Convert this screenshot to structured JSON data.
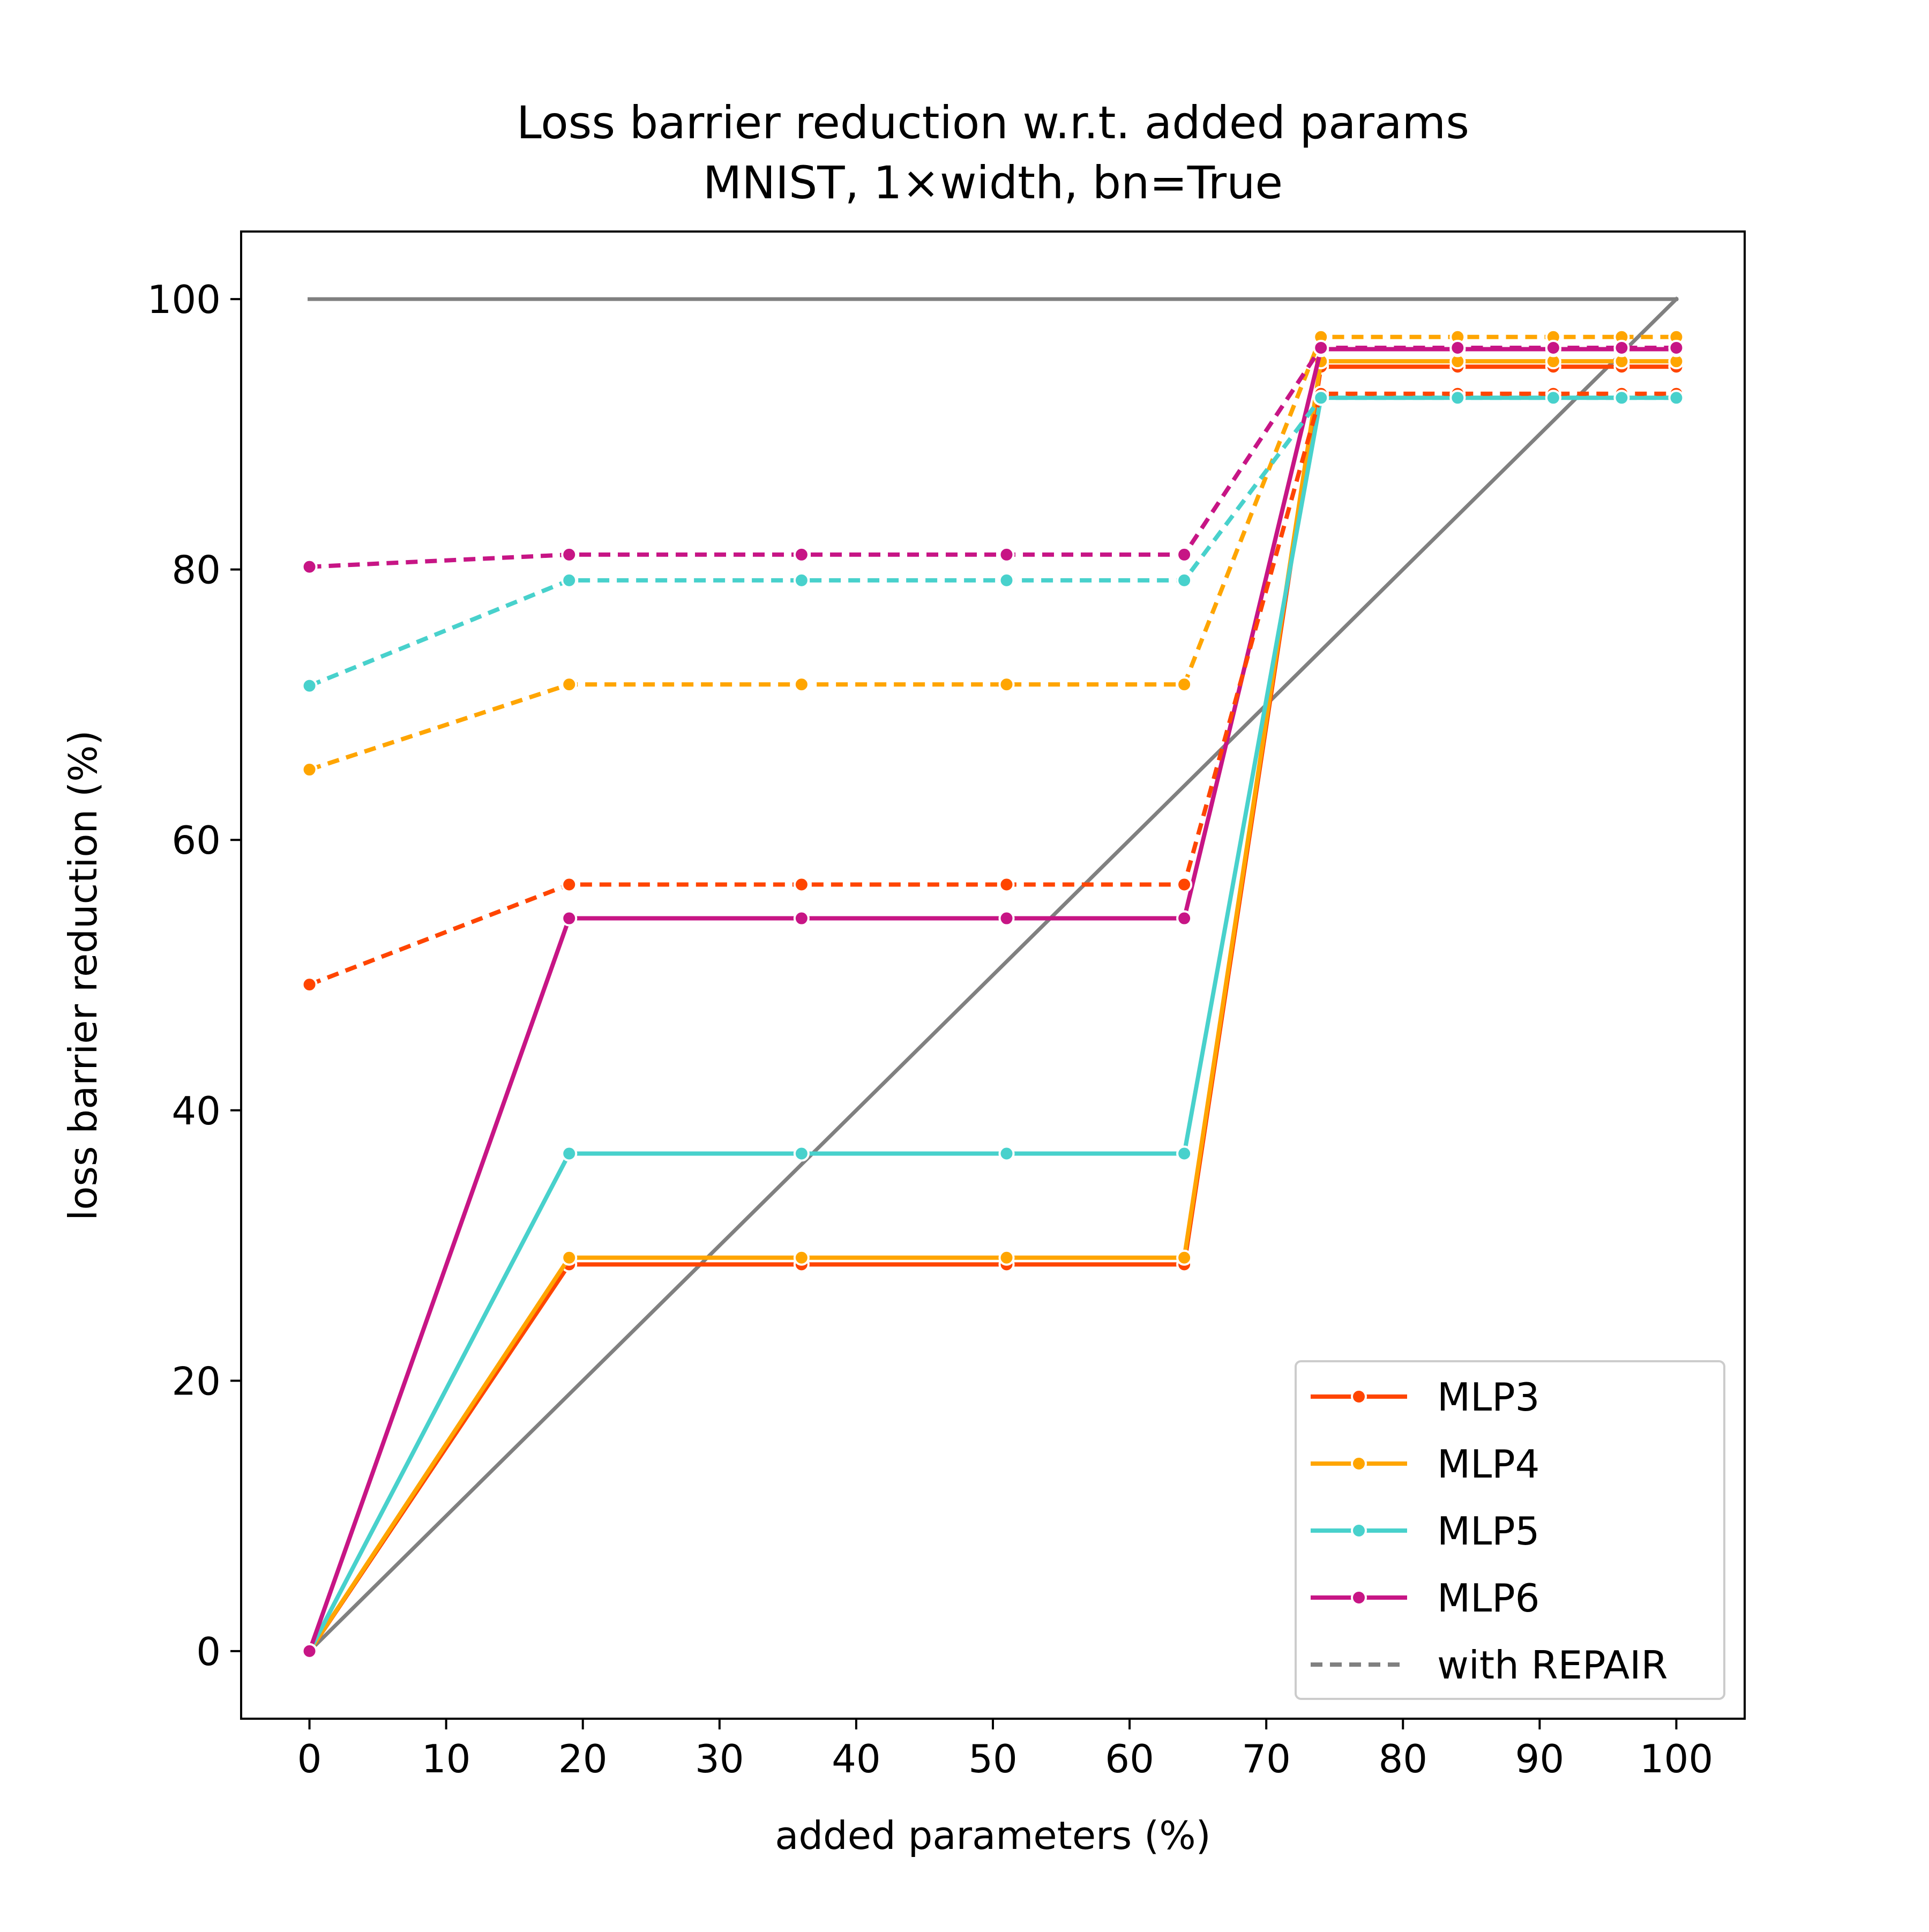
{
  "chart_data": {
    "type": "line",
    "title": [
      "Loss barrier reduction w.r.t. added params",
      "MNIST, 1×width, bn=True"
    ],
    "xlabel": "added parameters (%)",
    "ylabel": "loss barrier reduction (%)",
    "xlim": [
      -5,
      105
    ],
    "ylim": [
      -5,
      105
    ],
    "xticks": [
      0,
      10,
      20,
      30,
      40,
      50,
      60,
      70,
      80,
      90,
      100
    ],
    "yticks": [
      0,
      20,
      40,
      60,
      80,
      100
    ],
    "grid": false,
    "legend_position": "lower right",
    "x": [
      0,
      19,
      36,
      51,
      64,
      74,
      84,
      91,
      96,
      100
    ],
    "series": [
      {
        "name": "MLP3",
        "color": "#ff4500",
        "style": "solid",
        "values": [
          0,
          28.6,
          28.6,
          28.6,
          28.6,
          95.0,
          95.0,
          95.0,
          95.0,
          95.0
        ]
      },
      {
        "name": "MLP4",
        "color": "#ffa500",
        "style": "solid",
        "values": [
          0,
          29.1,
          29.1,
          29.1,
          29.1,
          95.4,
          95.4,
          95.4,
          95.4,
          95.4
        ]
      },
      {
        "name": "MLP5",
        "color": "#48d1cc",
        "style": "solid",
        "values": [
          0,
          36.8,
          36.8,
          36.8,
          36.8,
          92.7,
          92.7,
          92.7,
          92.7,
          92.7
        ]
      },
      {
        "name": "MLP6",
        "color": "#c71585",
        "style": "solid",
        "values": [
          0,
          54.2,
          54.2,
          54.2,
          54.2,
          96.3,
          96.3,
          96.3,
          96.3,
          96.3
        ]
      },
      {
        "name": "",
        "color": "#ff4500",
        "style": "dashed",
        "values": [
          49.3,
          56.7,
          56.7,
          56.7,
          56.7,
          93.0,
          93.0,
          93.0,
          93.0,
          93.0
        ]
      },
      {
        "name": "",
        "color": "#ffa500",
        "style": "dashed",
        "values": [
          65.2,
          71.5,
          71.5,
          71.5,
          71.5,
          97.2,
          97.2,
          97.2,
          97.2,
          97.2
        ]
      },
      {
        "name": "",
        "color": "#48d1cc",
        "style": "dashed",
        "values": [
          71.4,
          79.2,
          79.2,
          79.2,
          79.2,
          92.7,
          92.7,
          92.7,
          92.7,
          92.7
        ]
      },
      {
        "name": "",
        "color": "#c71585",
        "style": "dashed",
        "values": [
          80.2,
          81.1,
          81.1,
          81.1,
          81.1,
          96.4,
          96.4,
          96.4,
          96.4,
          96.4
        ]
      }
    ],
    "reference_lines": [
      {
        "color": "#808080",
        "x": [
          0,
          100
        ],
        "values": [
          100,
          100
        ]
      },
      {
        "color": "#808080",
        "x": [
          0,
          100
        ],
        "values": [
          0,
          100
        ]
      }
    ],
    "legend": [
      {
        "label": "MLP3",
        "color": "#ff4500",
        "style": "solid",
        "marker": true
      },
      {
        "label": "MLP4",
        "color": "#ffa500",
        "style": "solid",
        "marker": true
      },
      {
        "label": "MLP5",
        "color": "#48d1cc",
        "style": "solid",
        "marker": true
      },
      {
        "label": "MLP6",
        "color": "#c71585",
        "style": "solid",
        "marker": true
      },
      {
        "label": "with REPAIR",
        "color": "#808080",
        "style": "dashed",
        "marker": false
      }
    ]
  }
}
